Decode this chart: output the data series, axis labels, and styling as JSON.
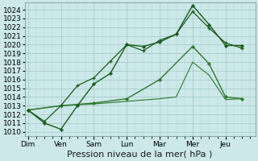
{
  "title": "",
  "xlabel": "Pression niveau de la mer( hPa )",
  "background_color": "#cce8e8",
  "grid_color": "#a0c8c8",
  "line_color_dark": "#1a5c1a",
  "line_color_mid": "#2d7a2d",
  "ylim_min": 1009.5,
  "ylim_max": 1024.8,
  "yticks": [
    1010,
    1011,
    1012,
    1013,
    1014,
    1015,
    1016,
    1017,
    1018,
    1019,
    1020,
    1021,
    1022,
    1023,
    1024
  ],
  "x_labels": [
    "Dim",
    "Ven",
    "Sam",
    "Lun",
    "Mar",
    "Mer",
    "Jeu"
  ],
  "x_tick_positions": [
    0,
    1,
    2,
    3,
    4,
    5,
    6
  ],
  "xlim_min": -0.1,
  "xlim_max": 6.9,
  "tick_fontsize": 6.5,
  "label_fontsize": 8,
  "series1_x": [
    0,
    0.5,
    1.0,
    1.5,
    2.0,
    2.5,
    3.0,
    3.5,
    4.0,
    4.5,
    5.0,
    5.5,
    6.0,
    6.5
  ],
  "series1_y": [
    1012.5,
    1011.0,
    1010.3,
    1013.0,
    1015.5,
    1016.7,
    1020.0,
    1019.8,
    1020.3,
    1021.2,
    1024.5,
    1022.3,
    1019.9,
    1019.9
  ],
  "series2_x": [
    0,
    0.5,
    1.0,
    1.5,
    2.0,
    2.5,
    3.0,
    3.5,
    4.0,
    4.5,
    5.0,
    5.5,
    6.0,
    6.5
  ],
  "series2_y": [
    1012.5,
    1011.2,
    1013.0,
    1015.3,
    1016.2,
    1018.1,
    1020.0,
    1019.3,
    1020.5,
    1021.2,
    1023.8,
    1021.9,
    1020.2,
    1019.6
  ],
  "series3_x": [
    0,
    1.0,
    2.0,
    3.0,
    4.0,
    5.0,
    5.5,
    6.0,
    6.5
  ],
  "series3_y": [
    1012.5,
    1013.0,
    1013.3,
    1013.8,
    1016.0,
    1019.8,
    1017.8,
    1014.0,
    1013.8
  ],
  "series4_x": [
    0,
    1.0,
    2.0,
    3.0,
    4.0,
    4.5,
    5.0,
    5.5,
    6.0,
    6.5
  ],
  "series4_y": [
    1012.5,
    1013.0,
    1013.2,
    1013.5,
    1013.8,
    1014.0,
    1018.0,
    1016.5,
    1013.7,
    1013.8
  ]
}
